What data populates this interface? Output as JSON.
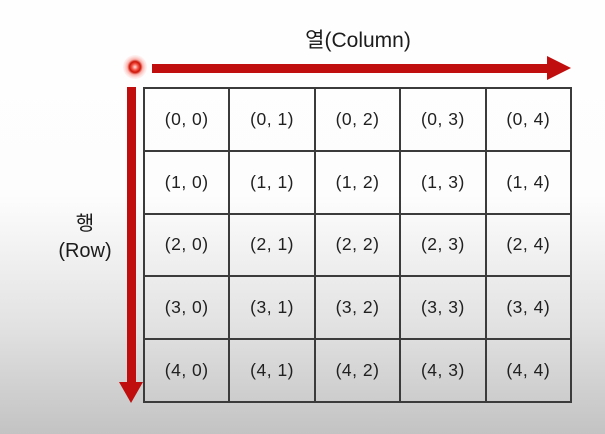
{
  "labels": {
    "column_axis": "열(Column)",
    "row_axis_line1": "행",
    "row_axis_line2": "(Row)"
  },
  "colors": {
    "arrow_red": "#c00d0d",
    "grid_border": "#3b3b3b",
    "text": "#1c1c1c",
    "background_top": "#fefefe",
    "background_bottom": "#c3c3c3"
  },
  "grid": {
    "rows": 5,
    "cols": 5,
    "cells": [
      [
        "(0, 0)",
        "(0, 1)",
        "(0, 2)",
        "(0, 3)",
        "(0, 4)"
      ],
      [
        "(1, 0)",
        "(1, 1)",
        "(1, 2)",
        "(1, 3)",
        "(1, 4)"
      ],
      [
        "(2, 0)",
        "(2, 1)",
        "(2, 2)",
        "(2, 3)",
        "(2, 4)"
      ],
      [
        "(3, 0)",
        "(3, 1)",
        "(3, 2)",
        "(3, 3)",
        "(3, 4)"
      ],
      [
        "(4, 0)",
        "(4, 1)",
        "(4, 2)",
        "(4, 3)",
        "(4, 4)"
      ]
    ]
  }
}
